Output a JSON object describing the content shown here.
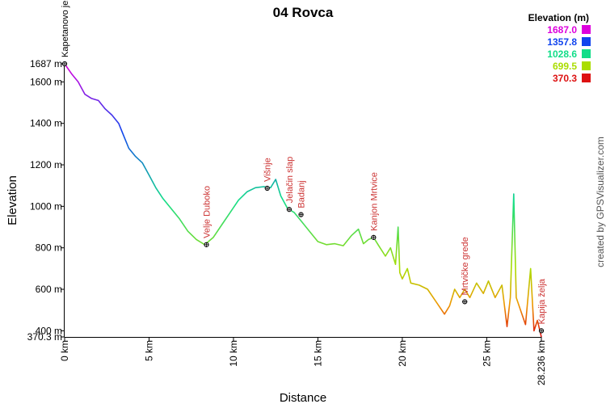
{
  "chart_data": {
    "type": "line",
    "title": "04 Rovca",
    "xlabel": "Distance",
    "ylabel": "Elevation",
    "xlim": [
      0,
      28.236
    ],
    "ylim": [
      370.3,
      1687
    ],
    "x_ticks": [
      "0 km",
      "5 km",
      "10 km",
      "15 km",
      "20 km",
      "25 km",
      "28.236 km"
    ],
    "y_ticks": [
      "370.3 m",
      "400 m",
      "600 m",
      "800 m",
      "1000 m",
      "1200 m",
      "1400 m",
      "1600 m",
      "1687 m"
    ],
    "legend_title": "Elevation (m)",
    "legend": [
      {
        "label": "1687.0",
        "color": "#dd00dd"
      },
      {
        "label": "1357.8",
        "color": "#1144ee"
      },
      {
        "label": "1028.6",
        "color": "#11dd88"
      },
      {
        "label": "699.5",
        "color": "#aadd00"
      },
      {
        "label": "370.3",
        "color": "#dd1111"
      }
    ],
    "credit": "created by GPSVisualizer.com",
    "series": [
      {
        "x": [
          0,
          0.4,
          0.8,
          1.2,
          1.6,
          2.0,
          2.4,
          2.8,
          3.2,
          3.5,
          3.8,
          4.2,
          4.6,
          5.0,
          5.4,
          5.8,
          6.3,
          6.8,
          7.3,
          7.8,
          8.3,
          8.8,
          9.3,
          9.8,
          10.3,
          10.8,
          11.3,
          11.8,
          12.2,
          12.5,
          12.8,
          13.2,
          13.6,
          14.0,
          14.5,
          15.0,
          15.5,
          16.0,
          16.5,
          17.0,
          17.4,
          17.7,
          18.0,
          18.3,
          18.6,
          19.0,
          19.3,
          19.6,
          19.75,
          19.85,
          20.0,
          20.3,
          20.5,
          21.0,
          21.5,
          22.0,
          22.5,
          22.8,
          23.1,
          23.4,
          23.7,
          24.0,
          24.4,
          24.8,
          25.1,
          25.5,
          25.9,
          26.2,
          26.4,
          26.6,
          26.75,
          27.0,
          27.3,
          27.6,
          27.8,
          28.0,
          28.236
        ],
        "y": [
          1687,
          1640,
          1600,
          1540,
          1520,
          1510,
          1470,
          1440,
          1400,
          1340,
          1280,
          1240,
          1210,
          1150,
          1090,
          1040,
          990,
          940,
          880,
          840,
          815,
          850,
          910,
          970,
          1030,
          1070,
          1090,
          1095,
          1090,
          1130,
          1050,
          990,
          970,
          930,
          880,
          830,
          815,
          820,
          810,
          860,
          890,
          820,
          840,
          850,
          810,
          760,
          800,
          720,
          900,
          680,
          650,
          700,
          630,
          620,
          600,
          540,
          480,
          520,
          600,
          560,
          600,
          560,
          630,
          580,
          640,
          560,
          620,
          420,
          560,
          1060,
          560,
          500,
          430,
          700,
          400,
          450,
          370.3
        ]
      }
    ],
    "waypoints": [
      {
        "name": "Kapetanovo jezero",
        "x": 0,
        "y": 1687
      },
      {
        "name": "Velje Duboko",
        "x": 8.4,
        "y": 815
      },
      {
        "name": "Višnje",
        "x": 12.0,
        "y": 1087
      },
      {
        "name": "Jelačin slap",
        "x": 13.3,
        "y": 985
      },
      {
        "name": "Badanj",
        "x": 14.0,
        "y": 960
      },
      {
        "name": "Kanjon Mrtvice",
        "x": 18.3,
        "y": 850
      },
      {
        "name": "Mrtvičke grede",
        "x": 23.7,
        "y": 540
      },
      {
        "name": "Kapija želja",
        "x": 28.236,
        "y": 400
      }
    ]
  }
}
